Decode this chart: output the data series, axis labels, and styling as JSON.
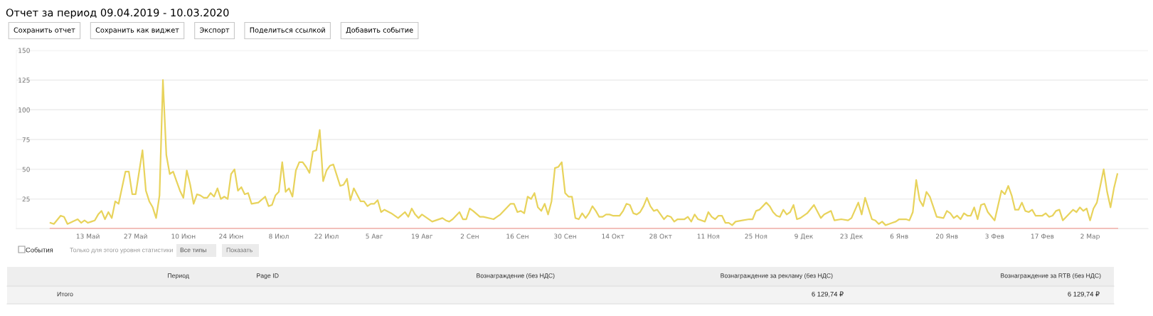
{
  "chart_data": [
    {
      "type": "line",
      "title": "Отчет за период 09.04.2019 - 10.03.2020",
      "annotations": [
        "Сохранить отчет",
        "Сохранить как виджет",
        "Экспорт",
        "Поделиться ссылкой",
        "Добавить событие"
      ],
      "series": [
        {
          "color": "#e8d35c",
          "x": [
            "2019-05-02",
            "2019-05-03",
            "2019-05-05",
            "2019-05-06",
            "2019-05-07",
            "2019-05-10",
            "2019-05-11",
            "2019-05-12",
            "2019-05-13",
            "2019-05-14",
            "2019-05-15",
            "2019-05-16",
            "2019-05-17",
            "2019-05-18",
            "2019-05-19",
            "2019-05-20",
            "2019-05-21",
            "2019-05-22",
            "2019-05-24",
            "2019-05-25",
            "2019-05-26",
            "2019-05-27",
            "2019-05-29",
            "2019-05-30",
            "2019-05-31",
            "2019-06-01",
            "2019-06-02",
            "2019-06-03",
            "2019-06-04",
            "2019-06-05",
            "2019-06-06",
            "2019-06-07",
            "2019-06-08",
            "2019-06-09",
            "2019-06-10",
            "2019-06-11",
            "2019-06-12",
            "2019-06-13",
            "2019-06-14",
            "2019-06-15",
            "2019-06-16",
            "2019-06-17",
            "2019-06-18",
            "2019-06-19",
            "2019-06-20",
            "2019-06-21",
            "2019-06-22",
            "2019-06-23",
            "2019-06-24",
            "2019-06-25",
            "2019-06-26",
            "2019-06-27",
            "2019-06-28",
            "2019-06-29",
            "2019-06-30",
            "2019-07-02",
            "2019-07-04",
            "2019-07-05",
            "2019-07-06",
            "2019-07-07",
            "2019-07-08",
            "2019-07-09",
            "2019-07-10",
            "2019-07-11",
            "2019-07-12",
            "2019-07-13",
            "2019-07-14",
            "2019-07-15",
            "2019-07-16",
            "2019-07-17",
            "2019-07-18",
            "2019-07-19",
            "2019-07-20",
            "2019-07-21",
            "2019-07-22",
            "2019-07-23",
            "2019-07-24",
            "2019-07-26",
            "2019-07-27",
            "2019-07-28",
            "2019-07-29",
            "2019-07-30",
            "2019-08-01",
            "2019-08-02",
            "2019-08-03",
            "2019-08-04",
            "2019-08-05",
            "2019-08-06",
            "2019-08-07",
            "2019-08-08",
            "2019-08-10",
            "2019-08-12",
            "2019-08-14",
            "2019-08-15",
            "2019-08-16",
            "2019-08-17",
            "2019-08-18",
            "2019-08-19",
            "2019-08-22",
            "2019-08-25",
            "2019-08-26",
            "2019-08-27",
            "2019-08-28",
            "2019-08-30",
            "2019-08-31",
            "2019-09-01",
            "2019-09-02",
            "2019-09-03",
            "2019-09-05",
            "2019-09-06",
            "2019-09-09",
            "2019-09-10",
            "2019-09-11",
            "2019-09-12",
            "2019-09-13",
            "2019-09-14",
            "2019-09-15",
            "2019-09-16",
            "2019-09-17",
            "2019-09-18",
            "2019-09-19",
            "2019-09-20",
            "2019-09-21",
            "2019-09-22",
            "2019-09-23",
            "2019-09-24",
            "2019-09-25",
            "2019-09-26",
            "2019-09-27",
            "2019-09-28",
            "2019-09-29",
            "2019-09-30",
            "2019-10-01",
            "2019-10-02",
            "2019-10-03",
            "2019-10-04",
            "2019-10-05",
            "2019-10-06",
            "2019-10-07",
            "2019-10-08",
            "2019-10-09",
            "2019-10-10",
            "2019-10-11",
            "2019-10-12",
            "2019-10-13",
            "2019-10-14",
            "2019-10-15",
            "2019-10-16",
            "2019-10-17",
            "2019-10-18",
            "2019-10-19",
            "2019-10-20",
            "2019-10-21",
            "2019-10-22",
            "2019-10-23",
            "2019-10-24",
            "2019-10-25",
            "2019-10-26",
            "2019-10-27",
            "2019-10-29",
            "2019-10-30",
            "2019-10-31",
            "2019-11-01",
            "2019-11-02",
            "2019-11-04",
            "2019-11-05",
            "2019-11-06",
            "2019-11-07",
            "2019-11-08",
            "2019-11-10",
            "2019-11-11",
            "2019-11-12",
            "2019-11-13",
            "2019-11-14",
            "2019-11-15",
            "2019-11-16",
            "2019-11-17",
            "2019-11-18",
            "2019-11-19",
            "2019-11-21",
            "2019-11-23",
            "2019-11-24",
            "2019-11-25",
            "2019-11-26",
            "2019-11-28",
            "2019-11-29",
            "2019-11-30",
            "2019-12-01",
            "2019-12-02",
            "2019-12-03",
            "2019-12-04",
            "2019-12-05",
            "2019-12-06",
            "2019-12-07",
            "2019-12-08",
            "2019-12-10",
            "2019-12-12",
            "2019-12-14",
            "2019-12-15",
            "2019-12-17",
            "2019-12-18",
            "2019-12-20",
            "2019-12-22",
            "2019-12-23",
            "2019-12-25",
            "2019-12-26",
            "2019-12-27",
            "2019-12-29",
            "2019-12-30",
            "2019-12-31",
            "2020-01-01",
            "2020-01-02",
            "2020-01-03",
            "2020-01-04",
            "2020-01-05",
            "2020-01-06",
            "2020-01-08",
            "2020-01-09",
            "2020-01-10",
            "2020-01-11",
            "2020-01-12",
            "2020-01-13",
            "2020-01-14",
            "2020-01-15",
            "2020-01-17",
            "2020-01-19",
            "2020-01-20",
            "2020-01-21",
            "2020-01-22",
            "2020-01-23",
            "2020-01-24",
            "2020-01-25",
            "2020-01-26",
            "2020-01-27",
            "2020-01-28",
            "2020-01-29",
            "2020-01-30",
            "2020-01-31",
            "2020-02-01",
            "2020-02-03",
            "2020-02-05",
            "2020-02-06",
            "2020-02-07",
            "2020-02-08",
            "2020-02-09",
            "2020-02-10",
            "2020-02-11",
            "2020-02-12",
            "2020-02-13",
            "2020-02-14",
            "2020-02-15",
            "2020-02-17",
            "2020-02-18",
            "2020-02-19",
            "2020-02-20",
            "2020-02-21",
            "2020-02-22",
            "2020-02-23",
            "2020-02-24",
            "2020-02-26",
            "2020-02-27",
            "2020-02-28",
            "2020-02-29",
            "2020-03-01",
            "2020-03-02",
            "2020-03-03",
            "2020-03-04",
            "2020-03-06",
            "2020-03-07",
            "2020-03-08",
            "2020-03-09",
            "2020-03-10"
          ],
          "values": [
            5,
            4,
            11,
            10,
            4,
            8,
            5,
            7,
            5,
            6,
            7,
            12,
            15,
            8,
            14,
            9,
            23,
            21,
            48,
            48,
            29,
            29,
            66,
            32,
            23,
            18,
            9,
            28,
            125,
            62,
            46,
            48,
            40,
            32,
            26,
            49,
            37,
            21,
            29,
            28,
            26,
            26,
            30,
            27,
            34,
            25,
            27,
            25,
            46,
            50,
            32,
            35,
            29,
            30,
            21,
            22,
            27,
            19,
            20,
            28,
            31,
            56,
            31,
            34,
            27,
            49,
            56,
            56,
            52,
            47,
            65,
            66,
            83,
            40,
            49,
            53,
            54,
            36,
            37,
            42,
            24,
            34,
            23,
            23,
            19,
            21,
            21,
            24,
            14,
            16,
            13,
            9,
            14,
            10,
            17,
            12,
            9,
            12,
            6,
            9,
            7,
            6,
            8,
            14,
            8,
            8,
            17,
            15,
            10,
            10,
            8,
            10,
            12,
            15,
            18,
            21,
            21,
            14,
            15,
            13,
            27,
            25,
            30,
            18,
            15,
            21,
            12,
            23,
            51,
            52,
            56,
            30,
            27,
            27,
            9,
            8,
            13,
            9,
            13,
            19,
            15,
            10,
            10,
            12,
            12,
            11,
            11,
            11,
            15,
            21,
            20,
            13,
            12,
            14,
            19,
            26,
            19,
            15,
            16,
            8,
            11,
            10,
            6,
            8,
            8,
            10,
            6,
            12,
            8,
            6,
            14,
            10,
            8,
            11,
            11,
            5,
            5,
            3,
            6,
            7,
            8,
            8,
            15,
            16,
            22,
            19,
            14,
            11,
            10,
            16,
            12,
            14,
            20,
            8,
            9,
            13,
            20,
            9,
            12,
            15,
            7,
            8,
            7,
            9,
            22,
            12,
            26,
            8,
            7,
            4,
            6,
            3,
            4,
            5,
            6,
            8,
            8,
            7,
            14,
            41,
            24,
            19,
            31,
            27,
            10,
            9,
            15,
            13,
            9,
            11,
            8,
            13,
            11,
            11,
            18,
            8,
            20,
            21,
            14,
            7,
            32,
            29,
            36,
            28,
            16,
            16,
            22,
            15,
            14,
            16,
            11,
            11,
            13,
            10,
            11,
            15,
            16,
            7,
            10,
            16,
            14,
            18,
            15,
            17,
            7,
            17,
            22,
            50,
            31,
            18,
            34,
            46
          ]
        },
        {
          "color": "#f4a39b",
          "x": [
            "2019-05-02",
            "2020-03-10"
          ],
          "values": [
            0,
            0
          ]
        }
      ],
      "xlim": [
        "2019-04-22",
        "2020-03-19"
      ],
      "xticks": [
        {
          "value": "2019-05-13",
          "label": "13 Май"
        },
        {
          "value": "2019-05-27",
          "label": "27 Май"
        },
        {
          "value": "2019-06-10",
          "label": "10 Июн"
        },
        {
          "value": "2019-06-24",
          "label": "24 Июн"
        },
        {
          "value": "2019-07-08",
          "label": "8 Июл"
        },
        {
          "value": "2019-07-22",
          "label": "22 Июл"
        },
        {
          "value": "2019-08-05",
          "label": "5 Авг"
        },
        {
          "value": "2019-08-19",
          "label": "19 Авг"
        },
        {
          "value": "2019-09-02",
          "label": "2 Сен"
        },
        {
          "value": "2019-09-16",
          "label": "16 Сен"
        },
        {
          "value": "2019-09-30",
          "label": "30 Сен"
        },
        {
          "value": "2019-10-14",
          "label": "14 Окт"
        },
        {
          "value": "2019-10-28",
          "label": "28 Окт"
        },
        {
          "value": "2019-11-11",
          "label": "11 Ноя"
        },
        {
          "value": "2019-11-25",
          "label": "25 Ноя"
        },
        {
          "value": "2019-12-09",
          "label": "9 Дек"
        },
        {
          "value": "2019-12-23",
          "label": "23 Дек"
        },
        {
          "value": "2020-01-06",
          "label": "6 Янв"
        },
        {
          "value": "2020-01-20",
          "label": "20 Янв"
        },
        {
          "value": "2020-02-03",
          "label": "3 Фев"
        },
        {
          "value": "2020-02-17",
          "label": "17 Фев"
        },
        {
          "value": "2020-03-02",
          "label": "2 Мар"
        }
      ],
      "ylim": [
        0,
        150
      ],
      "yticks": [
        {
          "value": 0,
          "label": null
        },
        25,
        50,
        75,
        100,
        125,
        150
      ],
      "grid": "y"
    },
    {
      "type": "other",
      "annotations": [
        "События",
        "Только для этого уровня статистики",
        "Все типы",
        "Показать",
        "Период",
        "Page ID",
        "Вознаграждение (без НДС)",
        "Вознаграждение за рекламу (без НДС)",
        "Вознаграждение за RTB (без НДС)",
        "Итого",
        "6 129,74 ₽",
        "6 129,74 ₽"
      ]
    }
  ]
}
